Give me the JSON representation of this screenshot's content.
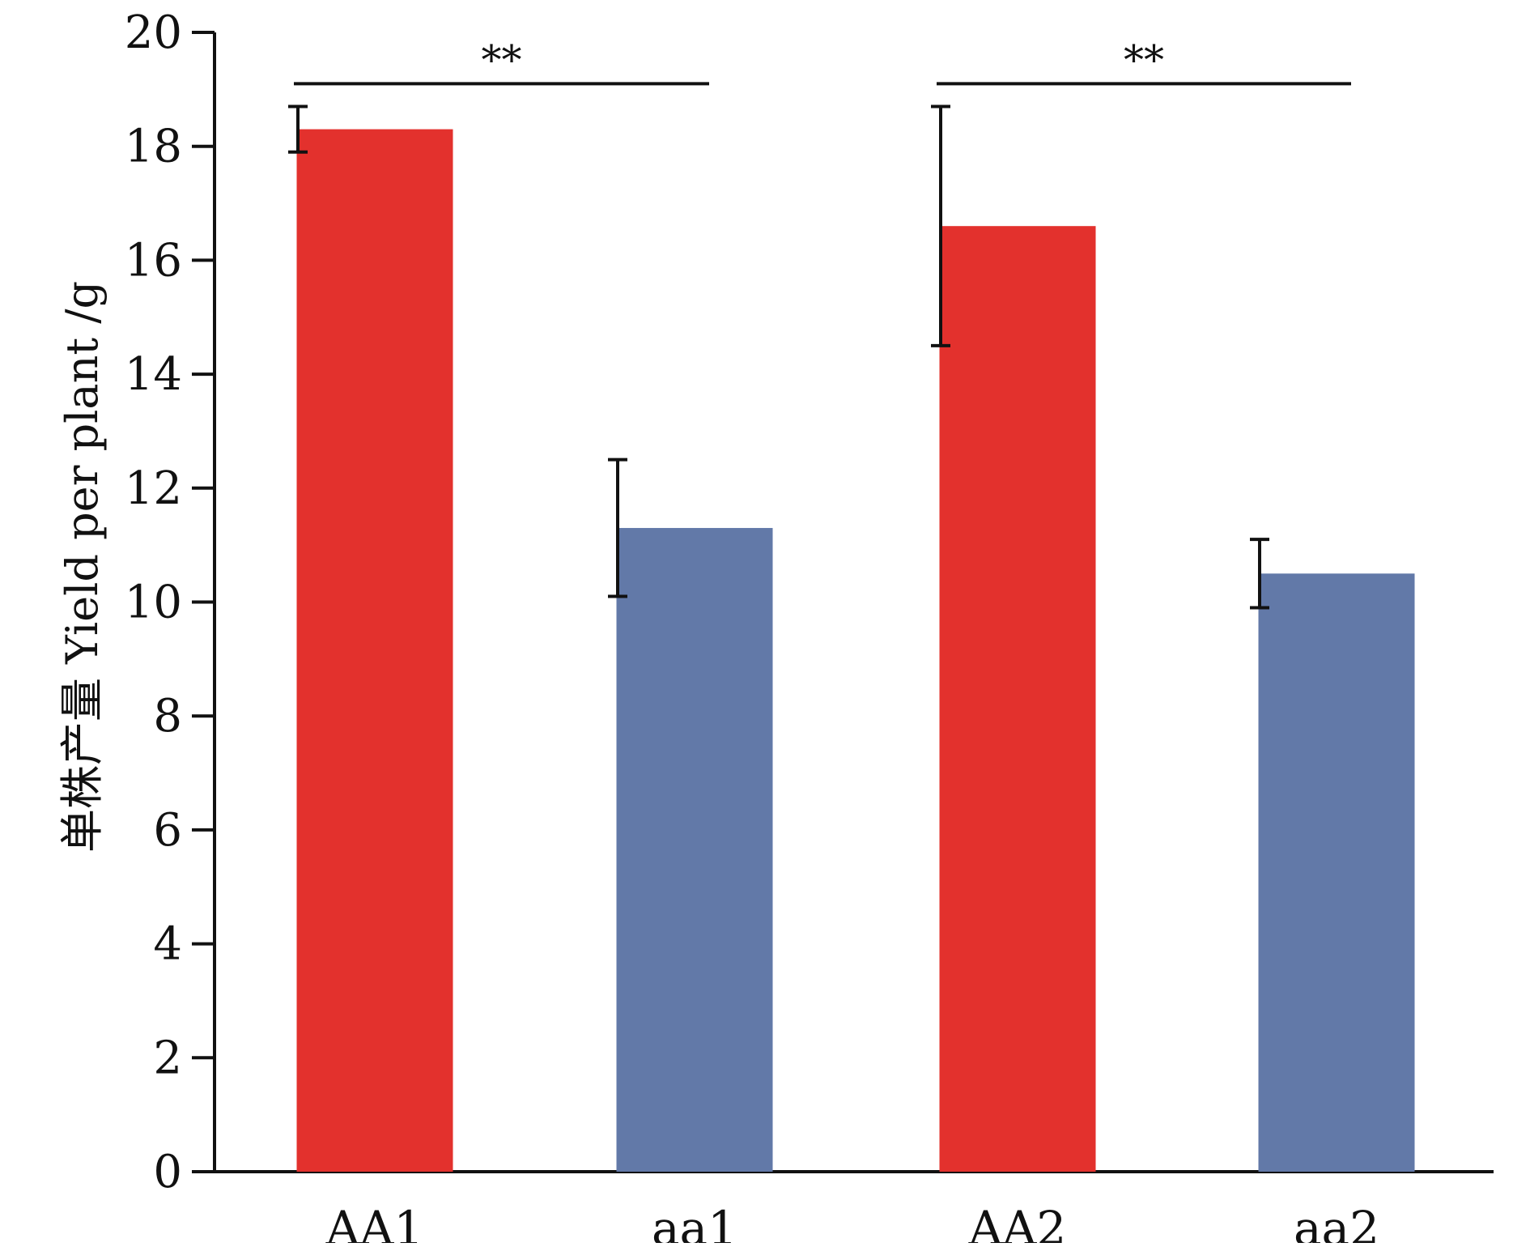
{
  "chart_data": {
    "type": "bar",
    "categories": [
      "AA1",
      "aa1",
      "AA2",
      "aa2"
    ],
    "values": [
      18.3,
      11.3,
      16.6,
      10.5
    ],
    "error": [
      [
        17.9,
        18.7
      ],
      [
        10.1,
        12.5
      ],
      [
        14.5,
        18.7
      ],
      [
        9.9,
        11.1
      ]
    ],
    "colors": [
      "#e3312d",
      "#6279a8",
      "#e3312d",
      "#6279a8"
    ],
    "title": "",
    "xlabel": "",
    "ylabel": "单株产量 Yield per plant /g",
    "ylim": [
      0,
      20
    ],
    "yticks": [
      0,
      2,
      4,
      6,
      8,
      10,
      12,
      14,
      16,
      18,
      20
    ],
    "grid": false,
    "annotations": [
      {
        "label": "**",
        "from": "AA1",
        "to": "aa1",
        "y": 19.1
      },
      {
        "label": "**",
        "from": "AA2",
        "to": "aa2",
        "y": 19.1
      }
    ]
  }
}
